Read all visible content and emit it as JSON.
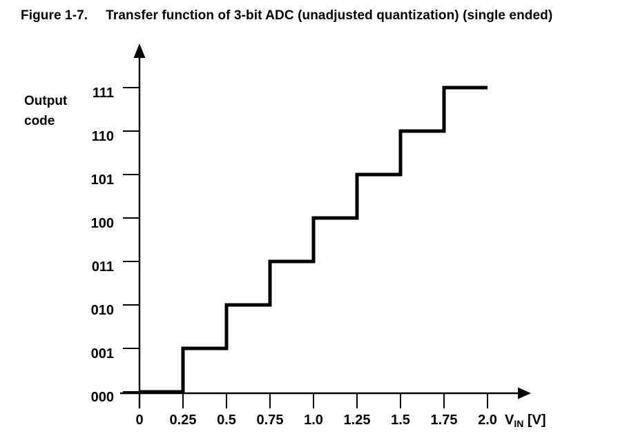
{
  "figure": {
    "label": "Figure 1-7.",
    "caption": "Transfer function of 3-bit ADC (unadjusted quantization) (single ended)"
  },
  "chart_data": {
    "type": "line",
    "subtype": "staircase",
    "title": "Transfer function of 3-bit ADC (unadjusted quantization) (single ended)",
    "ylabel": "Output code",
    "xlabel_parts": {
      "symbol": "V",
      "subscript": "IN",
      "unit": "[V]"
    },
    "x_tick_values": [
      0,
      0.25,
      0.5,
      0.75,
      1.0,
      1.25,
      1.5,
      1.75,
      2.0
    ],
    "x_tick_labels": [
      "0",
      "0.25",
      "0.5",
      "0.75",
      "1.0",
      "1.25",
      "1.5",
      "1.75",
      "2.0"
    ],
    "y_tick_labels": [
      "000",
      "001",
      "010",
      "011",
      "100",
      "101",
      "110",
      "111"
    ],
    "xlim": [
      0,
      2.0
    ],
    "lsb_volts": 0.25,
    "grid": false,
    "legend": false,
    "line_color": "#000000",
    "background_color": "#ffffff",
    "series": [
      {
        "name": "ADC transfer function",
        "steps": [
          {
            "code": "000",
            "x_from": 0.0,
            "x_to": 0.25
          },
          {
            "code": "001",
            "x_from": 0.25,
            "x_to": 0.5
          },
          {
            "code": "010",
            "x_from": 0.5,
            "x_to": 0.75
          },
          {
            "code": "011",
            "x_from": 0.75,
            "x_to": 1.0
          },
          {
            "code": "100",
            "x_from": 1.0,
            "x_to": 1.25
          },
          {
            "code": "101",
            "x_from": 1.25,
            "x_to": 1.5
          },
          {
            "code": "110",
            "x_from": 1.5,
            "x_to": 1.75
          },
          {
            "code": "111",
            "x_from": 1.75,
            "x_to": 2.0
          }
        ]
      }
    ]
  }
}
